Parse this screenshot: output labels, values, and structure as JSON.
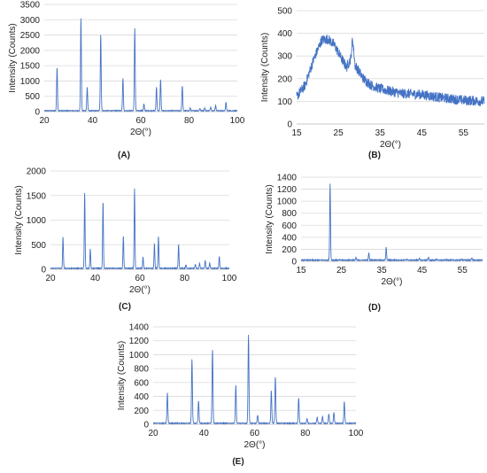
{
  "panels": [
    {
      "label": "(A)",
      "chart_data": {
        "type": "line",
        "xlabel": "2Θ(°)",
        "ylabel": "Intensity (Counts)",
        "xlim": [
          20,
          100
        ],
        "ylim": [
          0,
          3500
        ],
        "xticks": [
          20,
          40,
          60,
          80,
          100
        ],
        "yticks": [
          0,
          500,
          1000,
          1500,
          2000,
          2500,
          3000,
          3500
        ],
        "grid": "horizontal",
        "color": "#4472c4",
        "baseline": 30,
        "peaks": [
          [
            25.3,
            1450
          ],
          [
            35.2,
            3050
          ],
          [
            37.8,
            800
          ],
          [
            43.4,
            2530
          ],
          [
            52.6,
            1100
          ],
          [
            57.5,
            2730
          ],
          [
            61.3,
            250
          ],
          [
            66.5,
            800
          ],
          [
            68.2,
            1050
          ],
          [
            77.2,
            850
          ],
          [
            80.5,
            120
          ],
          [
            84.5,
            100
          ],
          [
            86.5,
            120
          ],
          [
            89.0,
            150
          ],
          [
            91.0,
            200
          ],
          [
            95.3,
            300
          ]
        ]
      }
    },
    {
      "label": "(B)",
      "chart_data": {
        "type": "line",
        "xlabel": "2Θ(°)",
        "ylabel": "Intensity (Counts)",
        "xlim": [
          15,
          60
        ],
        "ylim": [
          0,
          500
        ],
        "xticks": [
          15,
          25,
          35,
          45,
          55
        ],
        "yticks": [
          0,
          100,
          200,
          300,
          400,
          500
        ],
        "grid": "horizontal",
        "color": "#4472c4",
        "noisy": true,
        "envelope": [
          [
            15,
            120
          ],
          [
            17,
            170
          ],
          [
            19,
            280
          ],
          [
            21,
            370
          ],
          [
            22.5,
            375
          ],
          [
            24,
            350
          ],
          [
            26,
            280
          ],
          [
            27,
            250
          ],
          [
            28,
            290
          ],
          [
            28.4,
            380
          ],
          [
            29,
            260
          ],
          [
            31,
            200
          ],
          [
            33,
            170
          ],
          [
            35,
            155
          ],
          [
            40,
            135
          ],
          [
            45,
            130
          ],
          [
            50,
            115
          ],
          [
            55,
            105
          ],
          [
            60,
            100
          ]
        ]
      }
    },
    {
      "label": "(C)",
      "chart_data": {
        "type": "line",
        "xlabel": "2Θ(°)",
        "ylabel": "Intensity (Counts)",
        "xlim": [
          20,
          100
        ],
        "ylim": [
          0,
          2000
        ],
        "xticks": [
          20,
          40,
          60,
          80,
          100
        ],
        "yticks": [
          0,
          500,
          1000,
          1500,
          2000
        ],
        "grid": "horizontal",
        "color": "#4472c4",
        "baseline": 20,
        "peaks": [
          [
            25.6,
            650
          ],
          [
            35.3,
            1550
          ],
          [
            37.8,
            420
          ],
          [
            43.5,
            1380
          ],
          [
            52.6,
            680
          ],
          [
            57.6,
            1640
          ],
          [
            61.4,
            250
          ],
          [
            66.5,
            520
          ],
          [
            68.3,
            670
          ],
          [
            77.3,
            500
          ],
          [
            80.6,
            90
          ],
          [
            84.8,
            100
          ],
          [
            86.7,
            120
          ],
          [
            89.2,
            180
          ],
          [
            91.2,
            130
          ],
          [
            95.5,
            260
          ]
        ]
      }
    },
    {
      "label": "(D)",
      "chart_data": {
        "type": "line",
        "xlabel": "2Θ(°)",
        "ylabel": "Intensity (Counts)",
        "xlim": [
          15,
          60
        ],
        "ylim": [
          0,
          1400
        ],
        "xticks": [
          15,
          25,
          35,
          45,
          55
        ],
        "yticks": [
          0,
          200,
          400,
          600,
          800,
          1000,
          1200,
          1400
        ],
        "grid": "horizontal",
        "color": "#4472c4",
        "baseline": 20,
        "peaks": [
          [
            22.2,
            1290
          ],
          [
            28.6,
            60
          ],
          [
            31.8,
            140
          ],
          [
            36.1,
            230
          ],
          [
            41.2,
            40
          ],
          [
            44.3,
            50
          ],
          [
            46.6,
            70
          ],
          [
            48.6,
            40
          ],
          [
            51.0,
            30
          ],
          [
            54.8,
            40
          ],
          [
            57.3,
            60
          ]
        ]
      }
    },
    {
      "label": "(E)",
      "chart_data": {
        "type": "line",
        "xlabel": "2Θ(°)",
        "ylabel": "Intensity (Counts)",
        "xlim": [
          20,
          100
        ],
        "ylim": [
          0,
          1400
        ],
        "xticks": [
          20,
          40,
          60,
          80,
          100
        ],
        "yticks": [
          0,
          200,
          400,
          600,
          800,
          1000,
          1200,
          1400
        ],
        "grid": "horizontal",
        "color": "#4472c4",
        "baseline": 15,
        "peaks": [
          [
            25.6,
            450
          ],
          [
            35.3,
            940
          ],
          [
            37.9,
            340
          ],
          [
            43.4,
            1080
          ],
          [
            52.6,
            560
          ],
          [
            57.6,
            1290
          ],
          [
            61.2,
            130
          ],
          [
            66.6,
            490
          ],
          [
            68.2,
            680
          ],
          [
            77.4,
            380
          ],
          [
            80.7,
            80
          ],
          [
            84.7,
            100
          ],
          [
            86.8,
            110
          ],
          [
            89.3,
            150
          ],
          [
            91.3,
            170
          ],
          [
            95.4,
            330
          ]
        ]
      }
    }
  ]
}
